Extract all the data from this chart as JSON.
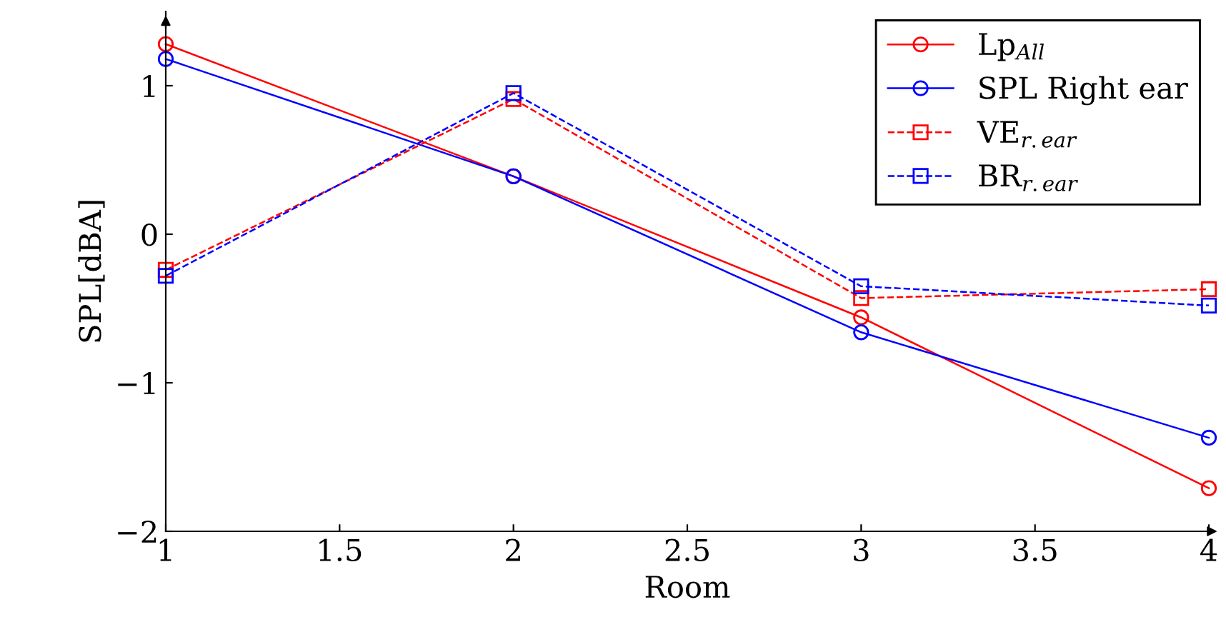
{
  "chart_data": {
    "type": "line",
    "xlabel": "Room",
    "ylabel": "SPL[dBA]",
    "x": [
      1,
      2,
      3,
      4
    ],
    "xlim": [
      1,
      4
    ],
    "xticks": [
      1,
      1.5,
      2,
      2.5,
      3,
      3.5,
      4
    ],
    "ylim": [
      -2,
      1.5
    ],
    "yticks": [
      {
        "value": -2,
        "label": "−2"
      },
      {
        "value": -1,
        "label": "−1"
      },
      0,
      1
    ],
    "grid": false,
    "legend": "top right",
    "series": [
      {
        "name": "Lp$_{All}$",
        "color": "#ff0000",
        "marker": "circle",
        "line_style": "solid",
        "values": [
          1.28,
          0.39,
          -0.56,
          -1.71
        ]
      },
      {
        "name": "SPL Right ear",
        "color": "#0000ff",
        "marker": "circle",
        "line_style": "solid",
        "values": [
          1.18,
          0.39,
          -0.66,
          -1.37
        ]
      },
      {
        "name": "VE$_{r.ear}$",
        "color": "#ff0000",
        "marker": "square",
        "line_style": "dashed",
        "values": [
          -0.24,
          0.91,
          -0.43,
          -0.37
        ]
      },
      {
        "name": "BR$_{r.ear}$",
        "color": "#0000ff",
        "marker": "square",
        "line_style": "dashed",
        "values": [
          -0.28,
          0.95,
          -0.35,
          -0.48
        ]
      }
    ]
  }
}
